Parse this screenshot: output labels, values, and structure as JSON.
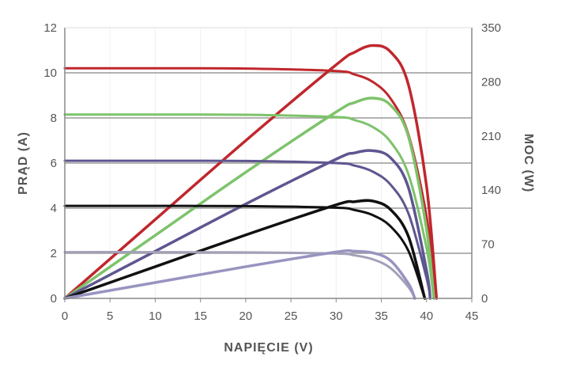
{
  "chart_data": {
    "type": "line",
    "title": "",
    "xlabel": "NAPIĘCIE (V)",
    "ylabel": "PRĄD (A)",
    "y2label": "MOC (W)",
    "xlim": [
      0,
      45
    ],
    "ylim": [
      0,
      12
    ],
    "y2lim": [
      0,
      350
    ],
    "xticks": [
      "0",
      "5",
      "10",
      "15",
      "20",
      "25",
      "30",
      "35",
      "40",
      "45"
    ],
    "yticks": [
      "0",
      "2",
      "4",
      "6",
      "8",
      "10",
      "12"
    ],
    "y2ticks": [
      "0",
      "70",
      "140",
      "210",
      "280",
      "350"
    ],
    "grid": "horizontal",
    "series": [
      {
        "name": "I-V red",
        "axis": "left",
        "color": "#c0272d",
        "x": [
          0,
          10,
          20,
          30,
          32,
          34,
          36,
          38,
          40,
          41.1
        ],
        "y": [
          10.2,
          10.2,
          10.19,
          10.08,
          9.93,
          9.61,
          8.87,
          7.25,
          3.63,
          0
        ]
      },
      {
        "name": "P-V red",
        "axis": "right",
        "color": "#c0272d",
        "x": [
          0,
          10,
          20,
          30,
          32,
          34,
          36,
          38,
          40,
          41.1
        ],
        "y": [
          0,
          102,
          204,
          302,
          318,
          327,
          319,
          276,
          145,
          0
        ]
      },
      {
        "name": "I-V green",
        "axis": "left",
        "color": "#7dc36b",
        "x": [
          0,
          10,
          20,
          30,
          32,
          34,
          36,
          38,
          40,
          40.8
        ],
        "y": [
          8.15,
          8.15,
          8.14,
          8.04,
          7.91,
          7.61,
          6.95,
          5.49,
          2.23,
          0
        ]
      },
      {
        "name": "P-V green",
        "axis": "right",
        "color": "#7dc36b",
        "x": [
          0,
          10,
          20,
          30,
          32,
          34,
          36,
          38,
          40,
          40.8
        ],
        "y": [
          0,
          81.5,
          163,
          241,
          253,
          259,
          250,
          209,
          89,
          0
        ]
      },
      {
        "name": "I-V purple",
        "axis": "left",
        "color": "#5e5690",
        "x": [
          0,
          10,
          20,
          30,
          32,
          34,
          36,
          38,
          40,
          40.4
        ],
        "y": [
          6.1,
          6.1,
          6.09,
          6.0,
          5.89,
          5.63,
          5.05,
          3.76,
          0.9,
          0
        ]
      },
      {
        "name": "P-V purple",
        "axis": "right",
        "color": "#5e5690",
        "x": [
          0,
          10,
          20,
          30,
          32,
          34,
          36,
          38,
          40,
          40.4
        ],
        "y": [
          0,
          61,
          122,
          180,
          188,
          191,
          182,
          143,
          36,
          0
        ]
      },
      {
        "name": "I-V black",
        "axis": "left",
        "color": "#111111",
        "x": [
          0,
          10,
          20,
          30,
          32,
          34,
          36,
          38,
          39.8
        ],
        "y": [
          4.1,
          4.1,
          4.09,
          4.02,
          3.92,
          3.7,
          3.2,
          2.1,
          0
        ]
      },
      {
        "name": "P-V black",
        "axis": "right",
        "color": "#111111",
        "x": [
          0,
          10,
          20,
          30,
          32,
          34,
          36,
          38,
          39.8
        ],
        "y": [
          0,
          41,
          82,
          121,
          125,
          126,
          115,
          80,
          0
        ]
      },
      {
        "name": "I-V light",
        "axis": "left",
        "color": "#a3a1b8",
        "x": [
          0,
          10,
          20,
          30,
          32,
          34,
          36,
          38,
          38.7
        ],
        "y": [
          2.05,
          2.05,
          2.04,
          1.99,
          1.91,
          1.74,
          1.35,
          0.5,
          0
        ]
      },
      {
        "name": "P-V light",
        "axis": "right",
        "color": "#9894c0",
        "x": [
          0,
          10,
          20,
          30,
          32,
          34,
          36,
          38,
          38.7
        ],
        "y": [
          0,
          20.5,
          41,
          60,
          61,
          59,
          49,
          19,
          0
        ]
      }
    ]
  }
}
